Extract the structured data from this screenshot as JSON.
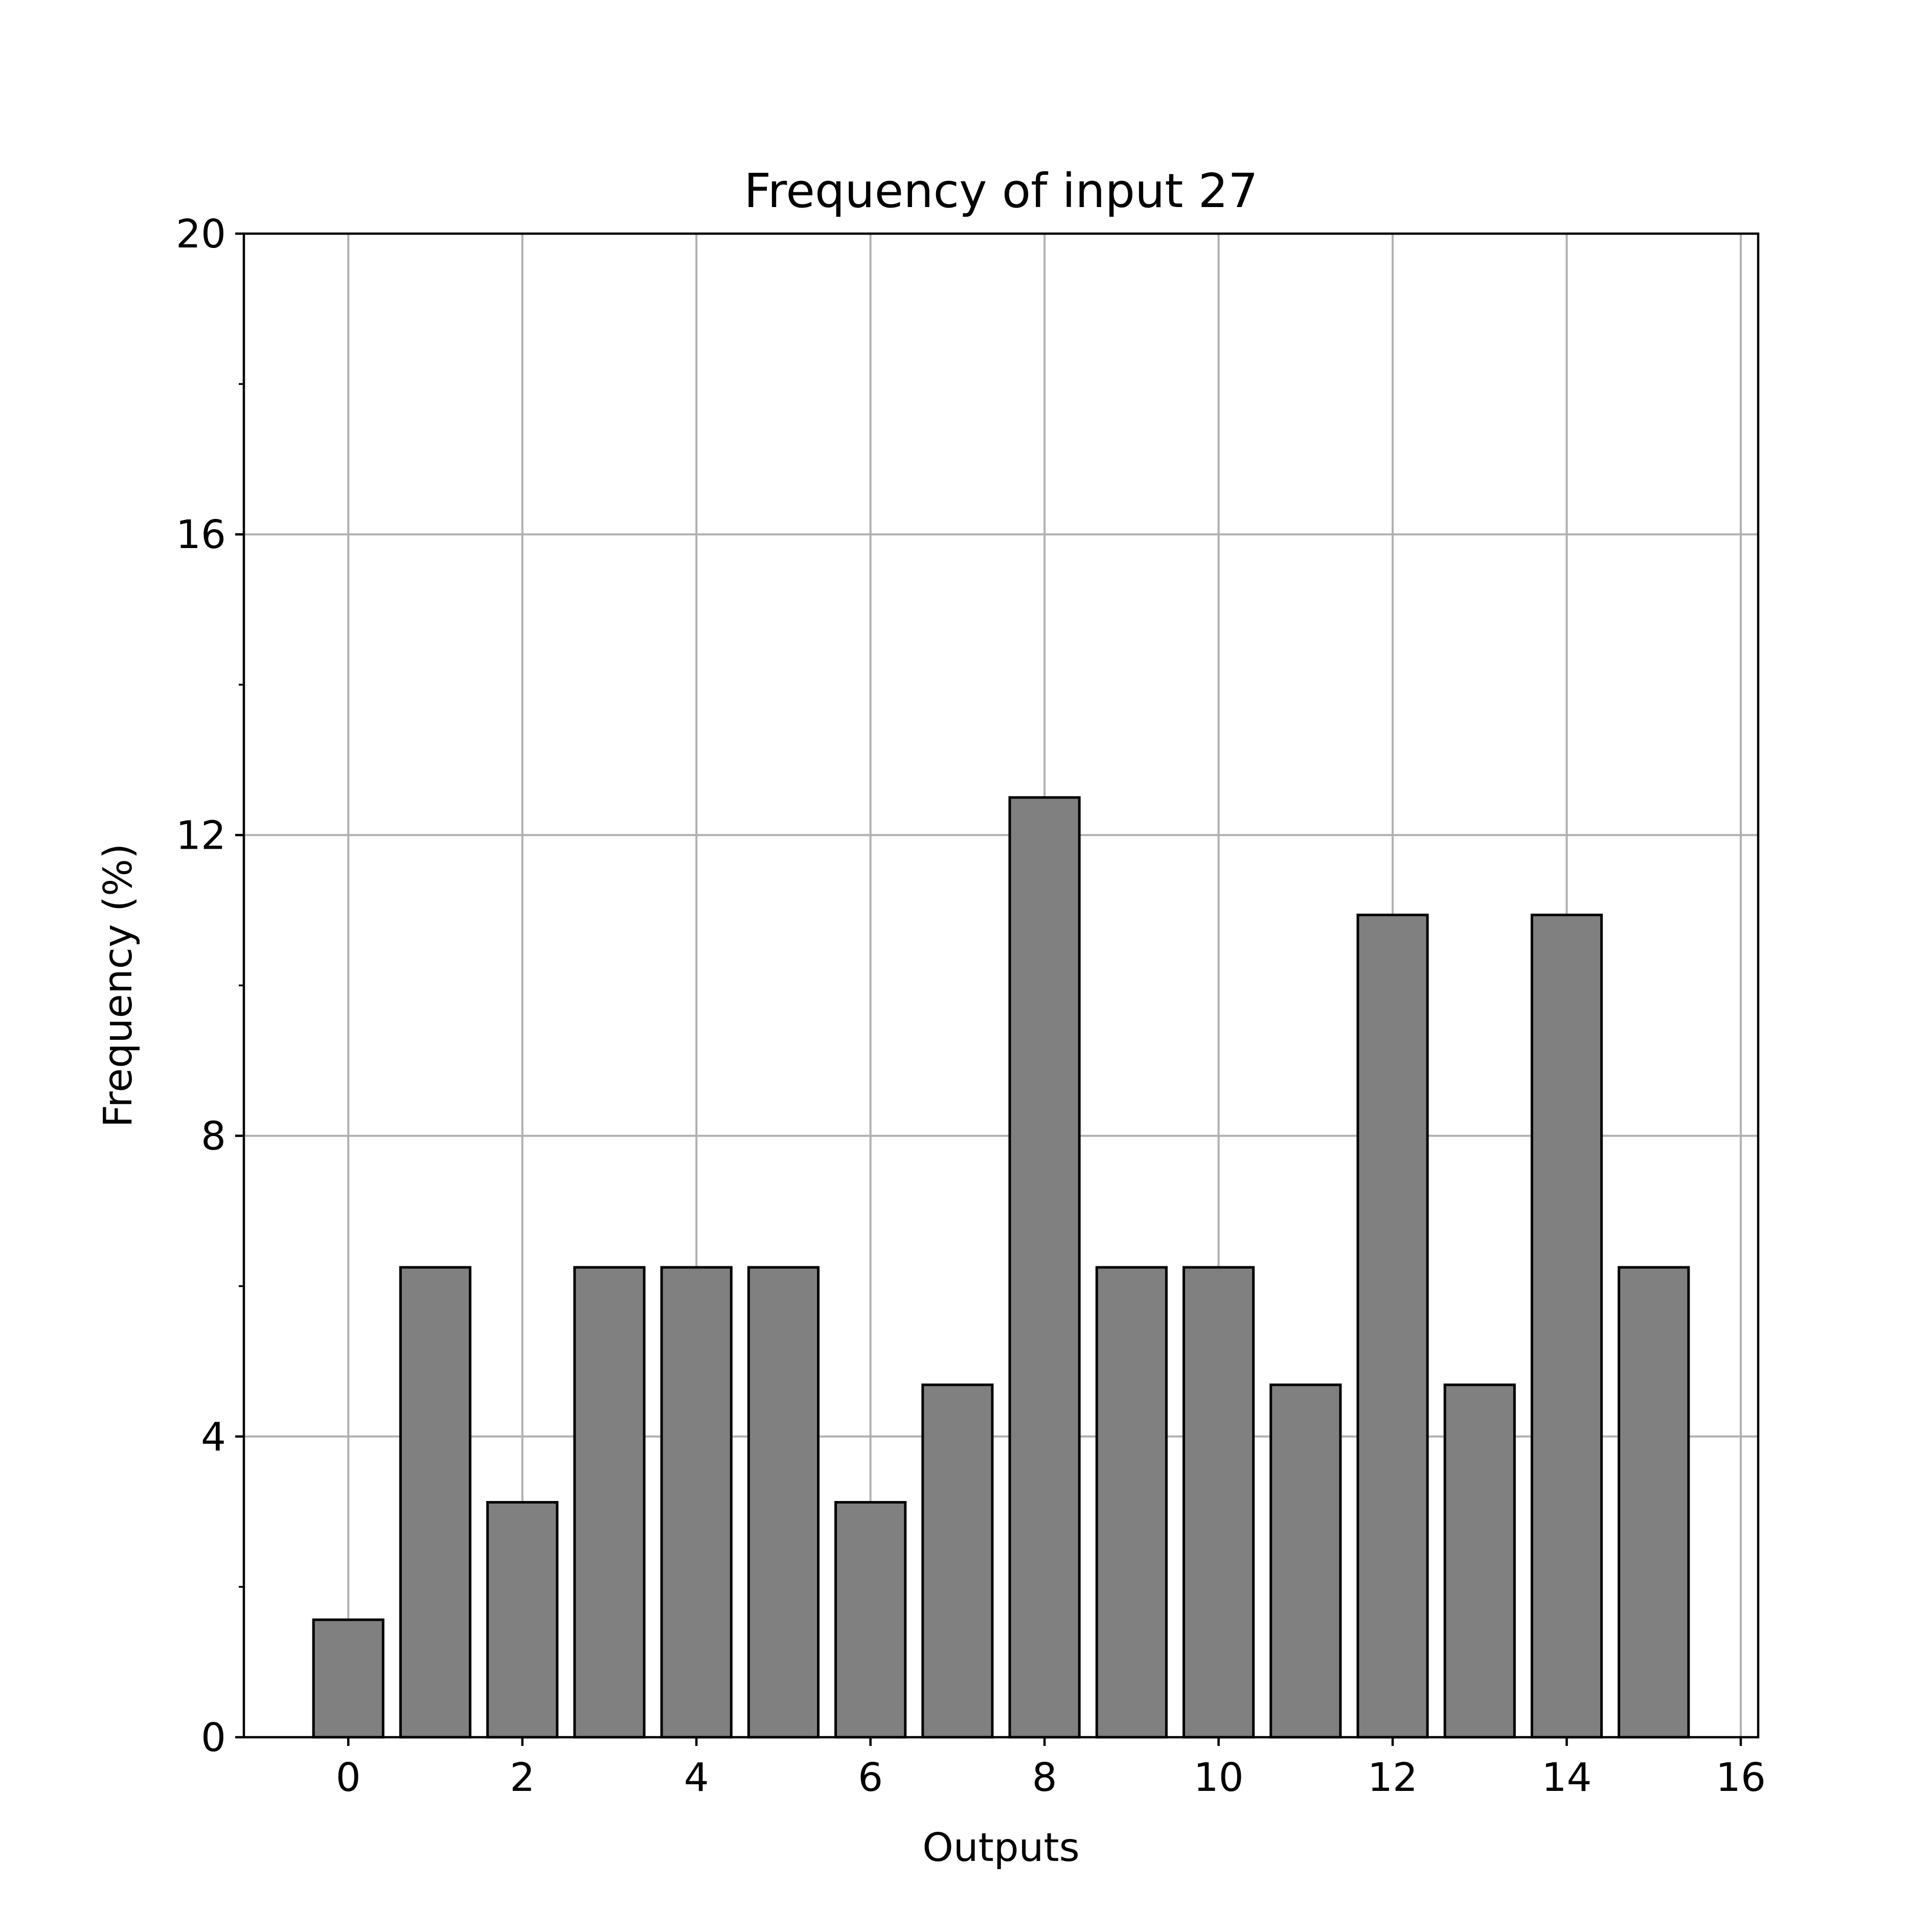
{
  "chart_data": {
    "type": "bar",
    "title": "Frequency of input 27",
    "xlabel": "Outputs",
    "ylabel": "Frequency (%)",
    "categories": [
      0,
      1,
      2,
      3,
      4,
      5,
      6,
      7,
      8,
      9,
      10,
      11,
      12,
      13,
      14,
      15
    ],
    "values": [
      1.5625,
      6.25,
      3.125,
      6.25,
      6.25,
      6.25,
      3.125,
      4.6875,
      12.5,
      6.25,
      6.25,
      4.6875,
      10.9375,
      4.6875,
      10.9375,
      6.25
    ],
    "xlim": [
      -1.2,
      16.2
    ],
    "ylim": [
      0,
      20
    ],
    "xticks": [
      0,
      2,
      4,
      6,
      8,
      10,
      12,
      14,
      16
    ],
    "yticks": [
      0,
      4,
      8,
      12,
      16,
      20
    ],
    "yminor_ticks": [
      2,
      6,
      10,
      14,
      18
    ],
    "grid": true,
    "bar_color": "#808080",
    "edge_color": "#000000",
    "grid_color": "#b0b0b0"
  }
}
